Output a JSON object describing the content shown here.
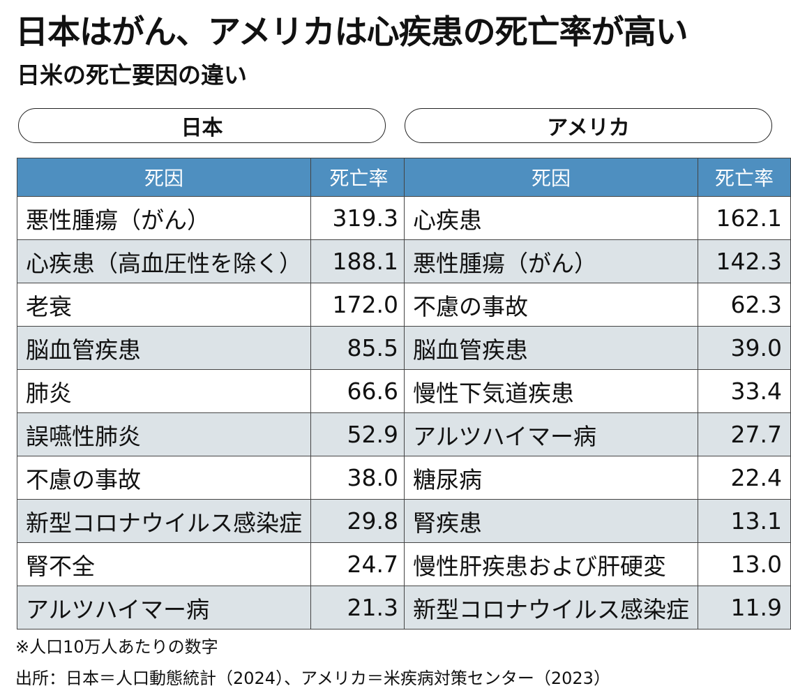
{
  "title": "日本はがん、アメリカは心疾患の死亡率が高い",
  "subtitle": "日米の死亡要因の違い",
  "columns": {
    "cause": "死因",
    "rate": "死亡率"
  },
  "japan": {
    "label": "日本",
    "rows": [
      {
        "cause": "悪性腫瘍（がん）",
        "rate": "319.3"
      },
      {
        "cause": "心疾患（高血圧性を除く）",
        "rate": "188.1"
      },
      {
        "cause": "老衰",
        "rate": "172.0"
      },
      {
        "cause": "脳血管疾患",
        "rate": "85.5"
      },
      {
        "cause": "肺炎",
        "rate": "66.6"
      },
      {
        "cause": "誤嚥性肺炎",
        "rate": "52.9"
      },
      {
        "cause": "不慮の事故",
        "rate": "38.0"
      },
      {
        "cause": "新型コロナウイルス感染症",
        "rate": "29.8"
      },
      {
        "cause": "腎不全",
        "rate": "24.7"
      },
      {
        "cause": "アルツハイマー病",
        "rate": "21.3"
      }
    ]
  },
  "usa": {
    "label": "アメリカ",
    "rows": [
      {
        "cause": "心疾患",
        "rate": "162.1"
      },
      {
        "cause": "悪性腫瘍（がん）",
        "rate": "142.3"
      },
      {
        "cause": "不慮の事故",
        "rate": "62.3"
      },
      {
        "cause": "脳血管疾患",
        "rate": "39.0"
      },
      {
        "cause": "慢性下気道疾患",
        "rate": "33.4"
      },
      {
        "cause": "アルツハイマー病",
        "rate": "27.7"
      },
      {
        "cause": "糖尿病",
        "rate": "22.4"
      },
      {
        "cause": "腎疾患",
        "rate": "13.1"
      },
      {
        "cause": "慢性肝疾患および肝硬変",
        "rate": "13.0"
      },
      {
        "cause": "新型コロナウイルス感染症",
        "rate": "11.9"
      }
    ]
  },
  "note": "※人口10万人あたりの数字",
  "source": "出所：日本＝人口動態統計（2024）、アメリカ＝米疾病対策センター（2023）",
  "colors": {
    "header": "#4e8fc0",
    "stripe": "#dce3e7",
    "border": "#444444"
  }
}
